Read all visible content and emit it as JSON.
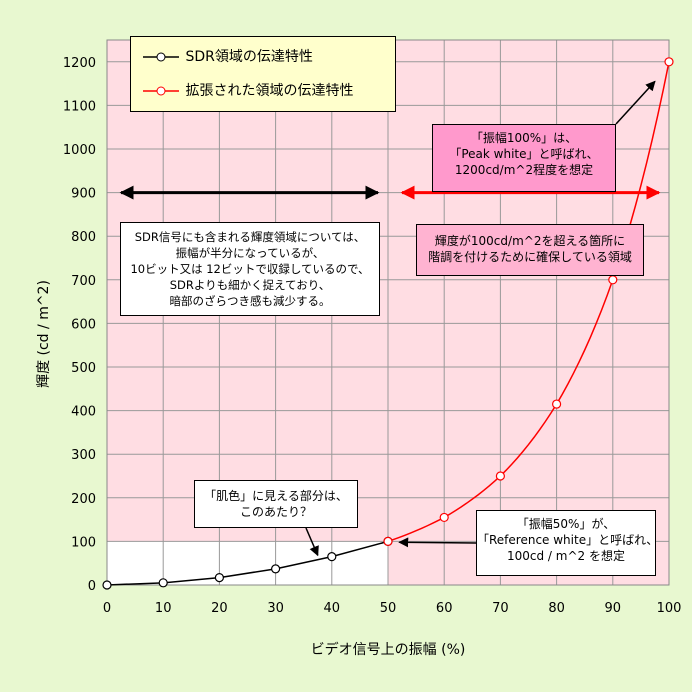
{
  "chart_data": {
    "type": "line",
    "xlabel": "ビデオ信号上の振幅 (%)",
    "ylabel": "輝度 (cd / m^2)",
    "xlim": [
      0,
      100
    ],
    "ylim": [
      0,
      1250
    ],
    "xticks": [
      0,
      10,
      20,
      30,
      40,
      50,
      60,
      70,
      80,
      90,
      100
    ],
    "yticks": [
      0,
      100,
      200,
      300,
      400,
      500,
      600,
      700,
      800,
      900,
      1000,
      1100,
      1200
    ],
    "grid": true,
    "legend_position": "top-left",
    "series": [
      {
        "name": "SDR領域の伝達特性",
        "color": "#000000",
        "marker": "open-circle",
        "x": [
          0,
          10,
          20,
          30,
          40,
          50
        ],
        "y": [
          0,
          5,
          17,
          37,
          65,
          100
        ]
      },
      {
        "name": "拡張された領域の伝達特性",
        "color": "#ff0000",
        "marker": "open-circle",
        "x": [
          50,
          60,
          70,
          80,
          90,
          100
        ],
        "y": [
          100,
          155,
          250,
          415,
          700,
          1200
        ]
      }
    ],
    "regions": [
      {
        "x": [
          0,
          50
        ],
        "y": [
          0,
          100
        ],
        "color": "#ffffff"
      },
      {
        "x": [
          0,
          100
        ],
        "y": [
          100,
          1250
        ],
        "color": "#ffdde3"
      },
      {
        "x": [
          50,
          100
        ],
        "y": [
          0,
          100
        ],
        "color": "#ffdde3"
      }
    ],
    "range_arrows": [
      {
        "x": [
          0,
          50
        ],
        "y": 900,
        "color": "#000000"
      },
      {
        "x": [
          50,
          100
        ],
        "y": 900,
        "color": "#ff0000"
      }
    ],
    "annotations": {
      "sdr_note": [
        "SDR信号にも含まれる輝度領域については、",
        "振幅が半分になっているが、",
        "10ビット又は 12ビットで収録しているので、",
        "SDRよりも細かく捉えており、",
        "暗部のざらつき感も減少する。"
      ],
      "ext_note": [
        "輝度が100cd/m^2を超える箇所に",
        "階調を付けるために確保している領域"
      ],
      "peak_note": [
        "「振幅100%」は、",
        "「Peak white」と呼ばれ、",
        "1200cd/m^2程度を想定"
      ],
      "ref_note": [
        "「振幅50%」が、",
        "「Reference white」と呼ばれ、",
        "100cd / m^2 を想定"
      ],
      "skin_note": [
        "「肌色」に見える部分は、",
        "このあたり？"
      ]
    },
    "colors": {
      "background": "#e8f8d0",
      "plot_pink": "#ffdde3",
      "highlight_pink": "#ff99cc",
      "note_pink": "#ffb3d1",
      "legend_bg": "#ffffcc",
      "grid": "#999999"
    }
  }
}
